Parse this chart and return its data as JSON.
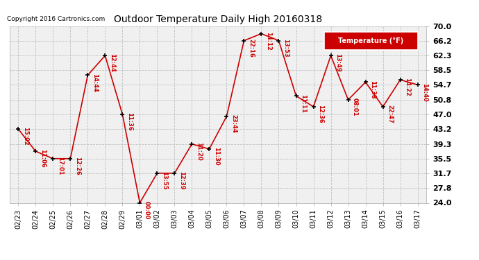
{
  "title": "Outdoor Temperature Daily High 20160318",
  "copyright": "Copyright 2016 Cartronics.com",
  "legend_label": "Temperature (°F)",
  "dates": [
    "02/23",
    "02/24",
    "02/25",
    "02/26",
    "02/27",
    "02/28",
    "02/29",
    "03/01",
    "03/02",
    "03/03",
    "03/04",
    "03/05",
    "03/06",
    "03/07",
    "03/08",
    "03/09",
    "03/10",
    "03/11",
    "03/12",
    "03/13",
    "03/14",
    "03/15",
    "03/16",
    "03/17"
  ],
  "values": [
    43.2,
    37.4,
    35.5,
    35.5,
    57.2,
    62.3,
    47.0,
    24.0,
    31.7,
    31.7,
    39.3,
    38.0,
    46.5,
    66.2,
    68.0,
    66.2,
    51.8,
    49.0,
    62.3,
    50.8,
    55.4,
    49.0,
    56.0,
    54.7
  ],
  "time_labels": [
    "15:02",
    "11:06",
    "17:01",
    "12:26",
    "14:44",
    "12:44",
    "11:36",
    "00:00",
    "13:55",
    "12:39",
    "11:20",
    "11:30",
    "23:44",
    "22:16",
    "14:12",
    "13:53",
    "11:11",
    "12:36",
    "13:49",
    "08:01",
    "11:38",
    "22:47",
    "14:22",
    "14:40"
  ],
  "ylim": [
    24.0,
    70.0
  ],
  "yticks": [
    24.0,
    27.8,
    31.7,
    35.5,
    39.3,
    43.2,
    47.0,
    50.8,
    54.7,
    58.5,
    62.3,
    66.2,
    70.0
  ],
  "line_color": "#cc0000",
  "marker_color": "#000000",
  "grid_color": "#c0c0c0",
  "bg_color": "#ffffff",
  "plot_bg_color": "#f0f0f0"
}
